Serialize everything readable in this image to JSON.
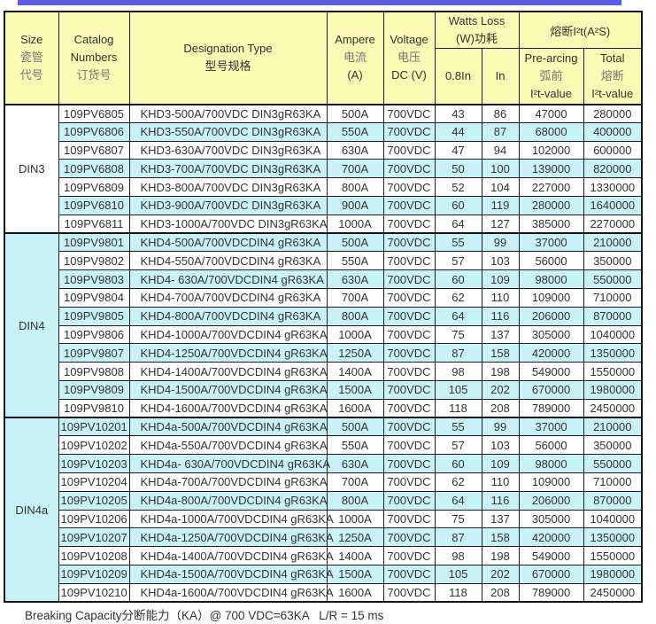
{
  "colors": {
    "top_bar": "#5b5be4",
    "header_bg": "#fafab4",
    "row_alt": "#c9f2f8",
    "border": "#1f1f1f",
    "text": "#333333"
  },
  "page": {
    "footer_note": "Breaking Capacity分断能力（KA）@ 700 VDC=63KA   L/R = 15 ms"
  },
  "table": {
    "header": {
      "size": [
        "Size",
        "瓷管",
        "代号"
      ],
      "catalog": [
        "Catalog",
        "Numbers",
        "订货号"
      ],
      "designation": [
        "Designation Type",
        "型号规格"
      ],
      "ampere": [
        "Ampere",
        "电流",
        "(A)"
      ],
      "voltage": [
        "Voltage",
        "电压",
        "DC (V)"
      ],
      "watts_loss": [
        "Watts Loss",
        "(W)功耗"
      ],
      "watts_sub": [
        "0.8In",
        "In"
      ],
      "i2t": "熔断I²t(A²S)",
      "prearcing": [
        "Pre-arcing",
        "弧前",
        "I²t-value"
      ],
      "total": [
        "Total",
        "熔断",
        "I²t-value"
      ]
    },
    "groups": [
      {
        "size": "DIN3",
        "rows": [
          {
            "catalog": "109PV6805",
            "designation": "KHD3-500A/700VDC DIN3gR63KA",
            "ampere": "500A",
            "voltage": "700VDC",
            "w08": "43",
            "win": "86",
            "prearcing": "47000",
            "total": "280000"
          },
          {
            "catalog": "109PV6806",
            "designation": "KHD3-550A/700VDC DIN3gR63KA",
            "ampere": "550A",
            "voltage": "700VDC",
            "w08": "44",
            "win": "87",
            "prearcing": "68000",
            "total": "400000"
          },
          {
            "catalog": "109PV6807",
            "designation": "KHD3-630A/700VDC DIN3gR63KA",
            "ampere": "630A",
            "voltage": "700VDC",
            "w08": "47",
            "win": "94",
            "prearcing": "102000",
            "total": "600000"
          },
          {
            "catalog": "109PV6808",
            "designation": "KHD3-700A/700VDC DIN3gR63KA",
            "ampere": "700A",
            "voltage": "700VDC",
            "w08": "50",
            "win": "100",
            "prearcing": "139000",
            "total": "820000"
          },
          {
            "catalog": "109PV6809",
            "designation": "KHD3-800A/700VDC DIN3gR63KA",
            "ampere": "800A",
            "voltage": "700VDC",
            "w08": "52",
            "win": "104",
            "prearcing": "227000",
            "total": "1330000"
          },
          {
            "catalog": "109PV6810",
            "designation": "KHD3-900A/700VDC DIN3gR63KA",
            "ampere": "900A",
            "voltage": "700VDC",
            "w08": "60",
            "win": "119",
            "prearcing": "280000",
            "total": "1640000"
          },
          {
            "catalog": "109PV6811",
            "designation": "KHD3-1000A/700VDC DIN3gR63KA",
            "ampere": "1000A",
            "voltage": "700VDC",
            "w08": "64",
            "win": "127",
            "prearcing": "385000",
            "total": "2270000"
          }
        ]
      },
      {
        "size": "DIN4",
        "rows": [
          {
            "catalog": "109PV9801",
            "designation": "KHD4-500A/700VDCDIN4 gR63KA",
            "ampere": "500A",
            "voltage": "700VDC",
            "w08": "55",
            "win": "99",
            "prearcing": "37000",
            "total": "210000"
          },
          {
            "catalog": "109PV9802",
            "designation": "KHD4-550A/700VDCDIN4 gR63KA",
            "ampere": "550A",
            "voltage": "700VDC",
            "w08": "57",
            "win": "103",
            "prearcing": "56000",
            "total": "350000"
          },
          {
            "catalog": "109PV9803",
            "designation": "KHD4- 630A/700VDCDIN4 gR63KA",
            "ampere": "630A",
            "voltage": "700VDC",
            "w08": "60",
            "win": "109",
            "prearcing": "98000",
            "total": "550000"
          },
          {
            "catalog": "109PV9804",
            "designation": "KHD4-700A/700VDCDIN4 gR63KA",
            "ampere": "700A",
            "voltage": "700VDC",
            "w08": "62",
            "win": "110",
            "prearcing": "109000",
            "total": "710000"
          },
          {
            "catalog": "109PV9805",
            "designation": "KHD4-800A/700VDCDIN4 gR63KA",
            "ampere": "800A",
            "voltage": "700VDC",
            "w08": "64",
            "win": "116",
            "prearcing": "206000",
            "total": "870000"
          },
          {
            "catalog": "109PV9806",
            "designation": "KHD4-1000A/700VDCDIN4 gR63KA",
            "ampere": "1000A",
            "voltage": "700VDC",
            "w08": "75",
            "win": "137",
            "prearcing": "305000",
            "total": "1040000"
          },
          {
            "catalog": "109PV9807",
            "designation": "KHD4-1250A/700VDCDIN4 gR63KA",
            "ampere": "1250A",
            "voltage": "700VDC",
            "w08": "87",
            "win": "158",
            "prearcing": "420000",
            "total": "1350000"
          },
          {
            "catalog": "109PV9808",
            "designation": "KHD4-1400A/700VDCDIN4 gR63KA",
            "ampere": "1400A",
            "voltage": "700VDC",
            "w08": "98",
            "win": "198",
            "prearcing": "549000",
            "total": "1550000"
          },
          {
            "catalog": "109PV9809",
            "designation": "KHD4-1500A/700VDCDIN4 gR63KA",
            "ampere": "1500A",
            "voltage": "700VDC",
            "w08": "105",
            "win": "202",
            "prearcing": "670000",
            "total": "1980000"
          },
          {
            "catalog": "109PV9810",
            "designation": "KHD4-1600A/700VDCDIN4 gR63KA",
            "ampere": "1600A",
            "voltage": "700VDC",
            "w08": "118",
            "win": "208",
            "prearcing": "789000",
            "total": "2450000"
          }
        ]
      },
      {
        "size": "DIN4a",
        "rows": [
          {
            "catalog": "109PV10201",
            "designation": "KHD4a-500A/700VDCDIN4 gR63KA",
            "ampere": "500A",
            "voltage": "700VDC",
            "w08": "55",
            "win": "99",
            "prearcing": "37000",
            "total": "210000"
          },
          {
            "catalog": "109PV10202",
            "designation": "KHD4a-550A/700VDCDIN4 gR63KA",
            "ampere": "550A",
            "voltage": "700VDC",
            "w08": "57",
            "win": "103",
            "prearcing": "56000",
            "total": "350000"
          },
          {
            "catalog": "109PV10203",
            "designation": "KHD4a- 630A/700VDCDIN4 gR63KA",
            "ampere": "630A",
            "voltage": "700VDC",
            "w08": "60",
            "win": "109",
            "prearcing": "98000",
            "total": "550000"
          },
          {
            "catalog": "109PV10204",
            "designation": "KHD4a-700A/700VDCDIN4 gR63KA",
            "ampere": "700A",
            "voltage": "700VDC",
            "w08": "62",
            "win": "110",
            "prearcing": "109000",
            "total": "710000"
          },
          {
            "catalog": "109PV10205",
            "designation": "KHD4a-800A/700VDCDIN4 gR63KA",
            "ampere": "800A",
            "voltage": "700VDC",
            "w08": "64",
            "win": "116",
            "prearcing": "206000",
            "total": "870000"
          },
          {
            "catalog": "109PV10206",
            "designation": "KHD4a-1000A/700VDCDIN4 gR63KA",
            "ampere": "1000A",
            "voltage": "700VDC",
            "w08": "75",
            "win": "137",
            "prearcing": "305000",
            "total": "1040000"
          },
          {
            "catalog": "109PV10207",
            "designation": "KHD4a-1250A/700VDCDIN4 gR63KA",
            "ampere": "1250A",
            "voltage": "700VDC",
            "w08": "87",
            "win": "158",
            "prearcing": "420000",
            "total": "1350000"
          },
          {
            "catalog": "109PV10208",
            "designation": "KHD4a-1400A/700VDCDIN4 gR63KA",
            "ampere": "1400A",
            "voltage": "700VDC",
            "w08": "98",
            "win": "198",
            "prearcing": "549000",
            "total": "1550000"
          },
          {
            "catalog": "109PV10209",
            "designation": "KHD4a-1500A/700VDCDIN4 gR63KA",
            "ampere": "1500A",
            "voltage": "700VDC",
            "w08": "105",
            "win": "202",
            "prearcing": "670000",
            "total": "1980000"
          },
          {
            "catalog": "109PV10210",
            "designation": "KHD4a-1600A/700VDCDIN4 gR63KA",
            "ampere": "1600A",
            "voltage": "700VDC",
            "w08": "118",
            "win": "208",
            "prearcing": "789000",
            "total": "2450000"
          }
        ]
      }
    ]
  }
}
